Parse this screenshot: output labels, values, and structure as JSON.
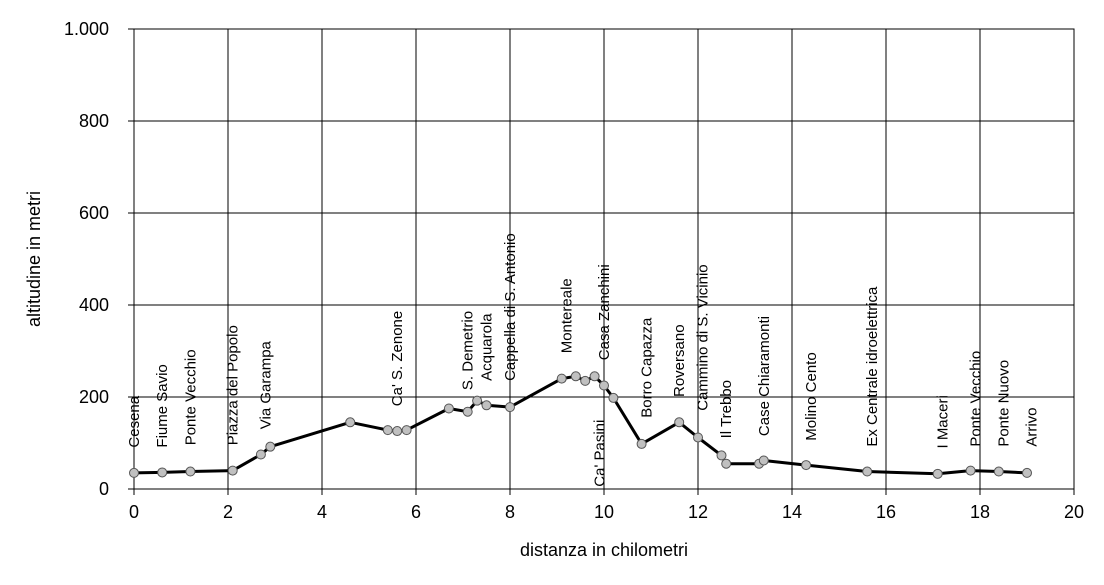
{
  "chart_data": {
    "type": "line",
    "xlabel": "distanza in chilometri",
    "ylabel": "altitudine  in metri",
    "xlim": [
      0,
      20
    ],
    "ylim": [
      0,
      1000
    ],
    "x_ticks": [
      0,
      2,
      4,
      6,
      8,
      10,
      12,
      14,
      16,
      18,
      20
    ],
    "x_tick_labels": [
      "0",
      "2",
      "4",
      "6",
      "8",
      "10",
      "12",
      "14",
      "16",
      "18",
      "20"
    ],
    "y_ticks": [
      0,
      200,
      400,
      600,
      800,
      1000
    ],
    "y_tick_labels": [
      "0",
      "200",
      "400",
      "600",
      "800",
      "1.000"
    ],
    "grid": true,
    "series": [
      {
        "x": [
          0,
          0.6,
          1.2,
          2.1,
          2.7,
          2.9,
          4.6,
          5.4,
          5.6,
          5.8,
          6.7,
          7.1,
          7.3,
          7.5,
          8.0,
          9.1,
          9.4,
          9.6,
          9.8,
          10.0,
          10.2,
          10.8,
          11.6,
          12.0,
          12.5,
          12.6,
          13.3,
          13.4,
          14.3,
          15.6,
          17.1,
          17.8,
          18.4,
          19.0
        ],
        "y": [
          35,
          36,
          38,
          40,
          75,
          92,
          145,
          128,
          126,
          128,
          175,
          168,
          192,
          182,
          178,
          240,
          245,
          235,
          245,
          225,
          198,
          98,
          145,
          112,
          73,
          55,
          55,
          62,
          52,
          38,
          33,
          40,
          38,
          35
        ]
      }
    ],
    "place_labels": [
      {
        "text": "Cesena",
        "x": 0.0,
        "y": 90
      },
      {
        "text": "Fiume Savio",
        "x": 0.6,
        "y": 90
      },
      {
        "text": "Ponte Vecchio",
        "x": 1.2,
        "y": 95
      },
      {
        "text": "Piazza del Popolo",
        "x": 2.1,
        "y": 95
      },
      {
        "text": "Via Garampa",
        "x": 2.8,
        "y": 130
      },
      {
        "text": "Ca' S. Zenone",
        "x": 5.6,
        "y": 180
      },
      {
        "text": "S. Demetrio",
        "x": 7.1,
        "y": 215
      },
      {
        "text": "Acquarola",
        "x": 7.5,
        "y": 235
      },
      {
        "text": "Cappella di S. Antonio",
        "x": 8.0,
        "y": 235
      },
      {
        "text": "Montereale",
        "x": 9.2,
        "y": 295
      },
      {
        "text": "Casa Zanchini",
        "x": 10.0,
        "y": 280
      },
      {
        "text": "Ca' Pasini",
        "x": 9.9,
        "y": 5
      },
      {
        "text": "Borro Capazza",
        "x": 10.9,
        "y": 155
      },
      {
        "text": "Roversano",
        "x": 11.6,
        "y": 200
      },
      {
        "text": "Cammino di S. Vicinio",
        "x": 12.1,
        "y": 170
      },
      {
        "text": "Il Trebbo",
        "x": 12.6,
        "y": 110
      },
      {
        "text": "Case Chiaramonti",
        "x": 13.4,
        "y": 115
      },
      {
        "text": "Molino Cento",
        "x": 14.4,
        "y": 105
      },
      {
        "text": "Ex Centrale idroelettrica",
        "x": 15.7,
        "y": 92
      },
      {
        "text": "I Maceri",
        "x": 17.2,
        "y": 88
      },
      {
        "text": "Ponte Vecchio",
        "x": 17.9,
        "y": 92
      },
      {
        "text": "Ponte Nuovo",
        "x": 18.5,
        "y": 92
      },
      {
        "text": "Arrivo",
        "x": 19.1,
        "y": 92
      }
    ]
  },
  "style": {
    "line_color": "#000000",
    "marker_fill": "#c0c0c0",
    "marker_stroke": "#555555",
    "grid_color": "#000000",
    "background": "#ffffff"
  }
}
